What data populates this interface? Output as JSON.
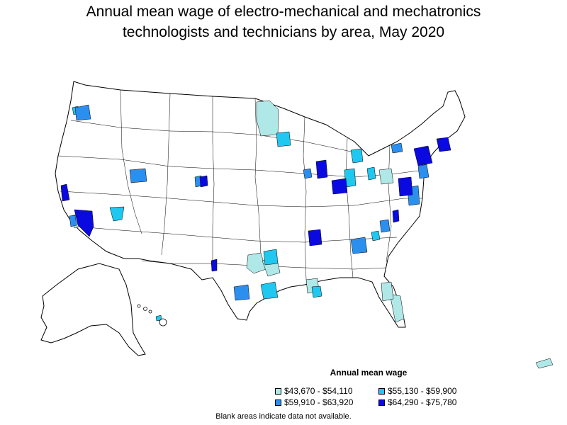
{
  "title_line1": "Annual mean wage of electro-mechanical and mechatronics",
  "title_line2": "technologists and technicians by area, May 2020",
  "legend": {
    "title": "Annual mean wage",
    "items": [
      {
        "label": "$43,670 - $54,110",
        "color": "#b0e8e8"
      },
      {
        "label": "$55,130 - $59,900",
        "color": "#1ec8f0"
      },
      {
        "label": "$59,910 - $63,920",
        "color": "#2b8ff0"
      },
      {
        "label": "$64,290 - $75,780",
        "color": "#0a0ae0"
      }
    ]
  },
  "footnote": "Blank areas indicate data not available.",
  "colors": {
    "border": "#000000",
    "no_data": "#ffffff"
  }
}
